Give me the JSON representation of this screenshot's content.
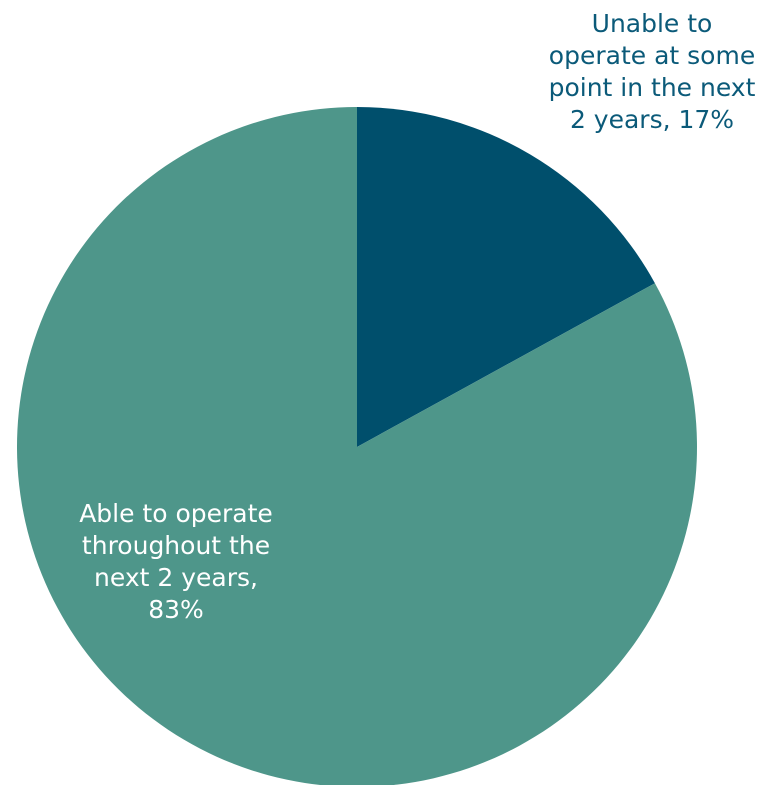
{
  "chart_data": {
    "type": "pie",
    "categories": [
      "Unable to operate at some point in the next 2 years",
      "Able to operate throughout the next 2 years"
    ],
    "values": [
      17,
      83
    ],
    "colors": [
      "#004F6C",
      "#4E968A"
    ],
    "label_colors": [
      "#0B5A79",
      "#FFFFFF"
    ],
    "data_labels": [
      [
        "Unable to",
        "operate at some",
        "point in the next",
        "2 years, 17%"
      ],
      [
        "Able to operate",
        "throughout the",
        "next 2 years,",
        "83%"
      ]
    ]
  }
}
